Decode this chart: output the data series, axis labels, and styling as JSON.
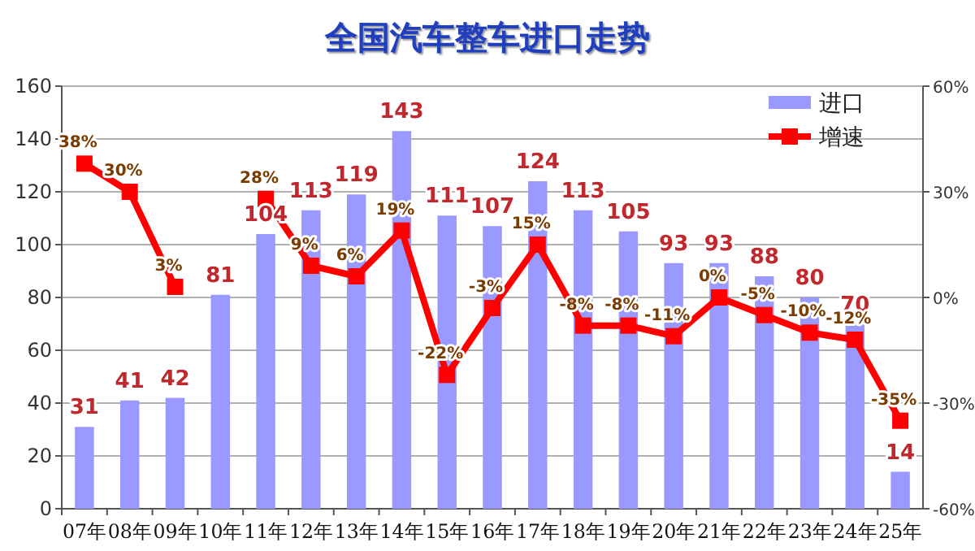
{
  "chart_data": {
    "type": "bar",
    "title": "全国汽车整车进口走势",
    "categories": [
      "07年",
      "08年",
      "09年",
      "10年",
      "11年",
      "12年",
      "13年",
      "14年",
      "15年",
      "16年",
      "17年",
      "18年",
      "19年",
      "20年",
      "21年",
      "22年",
      "23年",
      "24年",
      "25年"
    ],
    "series": [
      {
        "name": "进口",
        "color": "#9999ff",
        "data_labels": true,
        "values": [
          31,
          41,
          42,
          81,
          104,
          113,
          119,
          143,
          111,
          107,
          124,
          113,
          105,
          93,
          93,
          88,
          80,
          70,
          14
        ]
      },
      {
        "name": "增速",
        "type": "line",
        "axis": "y2",
        "color": "#ff0000",
        "marker": "square",
        "line_style": "solid",
        "values": [
          38,
          30,
          3,
          null,
          28,
          9,
          6,
          19,
          -22,
          -3,
          15,
          -8,
          -8,
          -11,
          0,
          -5,
          -10,
          -12,
          -35
        ],
        "value_labels": [
          "38%",
          "30%",
          "3%",
          null,
          "28%",
          "9%",
          "6%",
          "19%",
          "-22%",
          "-3%",
          "15%",
          "-8%",
          "-8%",
          "-11%",
          "0%",
          "-5%",
          "-10%",
          "-12%",
          "-35%"
        ]
      }
    ],
    "ylim": [
      0,
      160
    ],
    "yticks": [
      0,
      20,
      40,
      60,
      80,
      100,
      120,
      140,
      160
    ],
    "y2lim": [
      -60,
      60
    ],
    "y2ticks": [
      {
        "value": -60,
        "label": "-60%"
      },
      {
        "value": -30,
        "label": "-30%"
      },
      {
        "value": 0,
        "label": "0%"
      },
      {
        "value": 30,
        "label": "30%"
      },
      {
        "value": 60,
        "label": "60%"
      }
    ],
    "grid": "y",
    "legend": "top right"
  }
}
